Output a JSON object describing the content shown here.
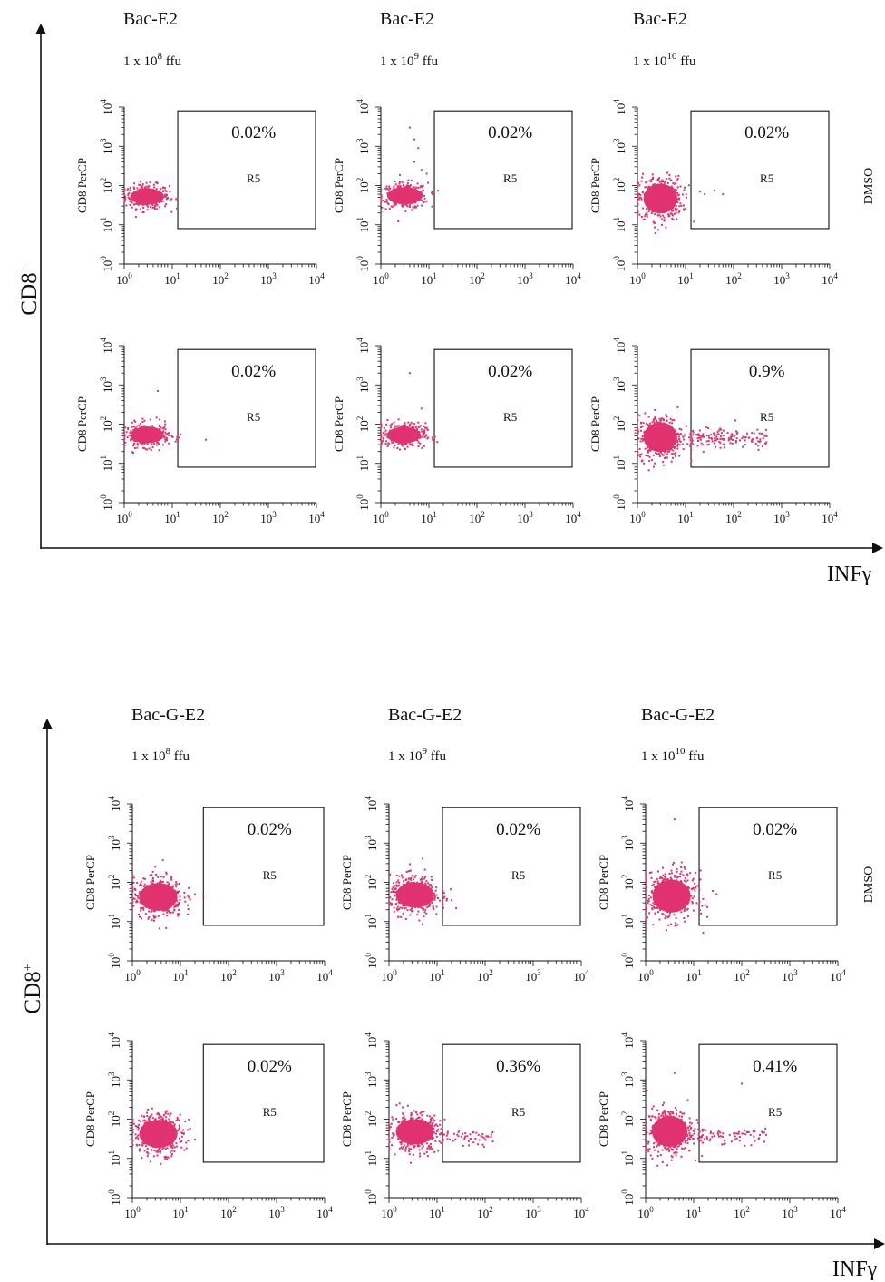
{
  "figure": {
    "outer_y_label": "CD8",
    "outer_y_label_sup": "+",
    "outer_x_label": "INFγ",
    "row_label": "DMSO"
  },
  "chart_data": [
    {
      "type": "scatter",
      "construct": "Bac-E2",
      "ylabel": "CD8 PerCP",
      "xscale": "log",
      "yscale": "log",
      "xlim": [
        1,
        10000
      ],
      "ylim": [
        1,
        10000
      ],
      "gate": "R5",
      "columns": [
        {
          "title": "Bac-E2",
          "dose_prefix": "1 x 10",
          "dose_exp": "8",
          "dose_unit": " ffu"
        },
        {
          "title": "Bac-E2",
          "dose_prefix": "1 x 10",
          "dose_exp": "9",
          "dose_unit": " ffu"
        },
        {
          "title": "Bac-E2",
          "dose_prefix": "1 x 10",
          "dose_exp": "10",
          "dose_unit": " ffu"
        }
      ],
      "panels": [
        {
          "row": 0,
          "col": 0,
          "percent": "0.02%",
          "gate_x": [
            13,
            10000
          ],
          "gate_y": [
            8,
            8000
          ],
          "cluster": {
            "x": [
              1,
              9
            ],
            "y": [
              25,
              110
            ]
          },
          "n_cluster": 320,
          "tail_count": 0,
          "extra_points": [
            [
              12,
              45
            ]
          ]
        },
        {
          "row": 0,
          "col": 1,
          "percent": "0.02%",
          "gate_x": [
            13,
            10000
          ],
          "gate_y": [
            8,
            8000
          ],
          "cluster": {
            "x": [
              1,
              10
            ],
            "y": [
              25,
              120
            ]
          },
          "n_cluster": 320,
          "tail_count": 0,
          "extra_points": [
            [
              4,
              3000
            ],
            [
              5,
              1500
            ],
            [
              6,
              900
            ],
            [
              5,
              400
            ],
            [
              7,
              250
            ],
            [
              12,
              60
            ],
            [
              9,
              200
            ]
          ]
        },
        {
          "row": 0,
          "col": 2,
          "percent": "0.02%",
          "gate_x": [
            13,
            10000
          ],
          "gate_y": [
            8,
            8000
          ],
          "cluster": {
            "x": [
              1,
              9
            ],
            "y": [
              12,
              180
            ]
          },
          "n_cluster": 400,
          "tail_count": 0,
          "extra_points": [
            [
              20,
              70
            ],
            [
              25,
              60
            ],
            [
              40,
              75
            ],
            [
              60,
              60
            ],
            [
              15,
              12
            ]
          ]
        },
        {
          "row": 1,
          "col": 0,
          "percent": "0.02%",
          "gate_x": [
            13,
            10000
          ],
          "gate_y": [
            8,
            8000
          ],
          "cluster": {
            "x": [
              1,
              9
            ],
            "y": [
              25,
              110
            ]
          },
          "n_cluster": 320,
          "tail_count": 0,
          "extra_points": [
            [
              5,
              700
            ],
            [
              15,
              55
            ],
            [
              50,
              40
            ]
          ]
        },
        {
          "row": 1,
          "col": 1,
          "percent": "0.02%",
          "gate_x": [
            13,
            10000
          ],
          "gate_y": [
            8,
            8000
          ],
          "cluster": {
            "x": [
              1,
              9
            ],
            "y": [
              25,
              110
            ]
          },
          "n_cluster": 320,
          "tail_count": 0,
          "extra_points": [
            [
              4,
              2000
            ],
            [
              7,
              250
            ],
            [
              12,
              40
            ],
            [
              15,
              35
            ]
          ]
        },
        {
          "row": 1,
          "col": 2,
          "percent": "0.9%",
          "gate_x": [
            13,
            10000
          ],
          "gate_y": [
            8,
            8000
          ],
          "cluster": {
            "x": [
              1,
              9
            ],
            "y": [
              12,
              180
            ]
          },
          "n_cluster": 420,
          "tail_count": 140,
          "tail": {
            "x": [
              12,
              500
            ],
            "y": [
              20,
              90
            ]
          },
          "extra_points": []
        }
      ]
    },
    {
      "type": "scatter",
      "construct": "Bac-G-E2",
      "ylabel": "CD8 PerCP",
      "xscale": "log",
      "yscale": "log",
      "xlim": [
        1,
        10000
      ],
      "ylim": [
        1,
        10000
      ],
      "gate": "R5",
      "columns": [
        {
          "title": "Bac-G-E2",
          "dose_prefix": "1 x 10",
          "dose_exp": "8",
          "dose_unit": " ffu"
        },
        {
          "title": "Bac-G-E2",
          "dose_prefix": "1 x 10",
          "dose_exp": "9",
          "dose_unit": " ffu"
        },
        {
          "title": "Bac-G-E2",
          "dose_prefix": "1 x 10",
          "dose_exp": "10",
          "dose_unit": " ffu"
        }
      ],
      "panels": [
        {
          "row": 0,
          "col": 0,
          "percent": "0.02%",
          "gate_x": [
            30,
            10000
          ],
          "gate_y": [
            8,
            8000
          ],
          "cluster": {
            "x": [
              1,
              12
            ],
            "y": [
              12,
              150
            ]
          },
          "n_cluster": 420,
          "tail_count": 0,
          "extra_points": [
            [
              3,
              250
            ],
            [
              20,
              50
            ],
            [
              30,
              45
            ]
          ]
        },
        {
          "row": 0,
          "col": 1,
          "percent": "0.02%",
          "gate_x": [
            13,
            10000
          ],
          "gate_y": [
            8,
            8000
          ],
          "cluster": {
            "x": [
              1,
              12
            ],
            "y": [
              15,
              150
            ]
          },
          "n_cluster": 420,
          "tail_count": 0,
          "extra_points": [
            [
              5,
              400
            ],
            [
              14,
              40
            ],
            [
              20,
              35
            ],
            [
              25,
              22
            ]
          ]
        },
        {
          "row": 0,
          "col": 2,
          "percent": "0.02%",
          "gate_x": [
            13,
            10000
          ],
          "gate_y": [
            8,
            8000
          ],
          "cluster": {
            "x": [
              1,
              12
            ],
            "y": [
              10,
              200
            ]
          },
          "n_cluster": 460,
          "tail_count": 0,
          "extra_points": [
            [
              4,
              4000
            ],
            [
              25,
              60
            ],
            [
              30,
              50
            ],
            [
              15,
              25
            ]
          ]
        },
        {
          "row": 1,
          "col": 0,
          "percent": "0.02%",
          "gate_x": [
            30,
            10000
          ],
          "gate_y": [
            8,
            8000
          ],
          "cluster": {
            "x": [
              1,
              12
            ],
            "y": [
              12,
              150
            ]
          },
          "n_cluster": 420,
          "tail_count": 0,
          "extra_points": [
            [
              20,
              30
            ]
          ]
        },
        {
          "row": 1,
          "col": 1,
          "percent": "0.36%",
          "gate_x": [
            13,
            10000
          ],
          "gate_y": [
            8,
            8000
          ],
          "cluster": {
            "x": [
              1,
              12
            ],
            "y": [
              15,
              150
            ]
          },
          "n_cluster": 420,
          "tail_count": 50,
          "tail": {
            "x": [
              12,
              150
            ],
            "y": [
              20,
              60
            ]
          },
          "extra_points": []
        },
        {
          "row": 1,
          "col": 2,
          "percent": "0.41%",
          "gate_x": [
            13,
            10000
          ],
          "gate_y": [
            8,
            8000
          ],
          "cluster": {
            "x": [
              1,
              10
            ],
            "y": [
              12,
              200
            ]
          },
          "n_cluster": 460,
          "tail_count": 70,
          "tail": {
            "x": [
              12,
              350
            ],
            "y": [
              20,
              70
            ]
          },
          "extra_points": [
            [
              4,
              1500
            ],
            [
              100,
              800
            ]
          ]
        }
      ]
    }
  ]
}
